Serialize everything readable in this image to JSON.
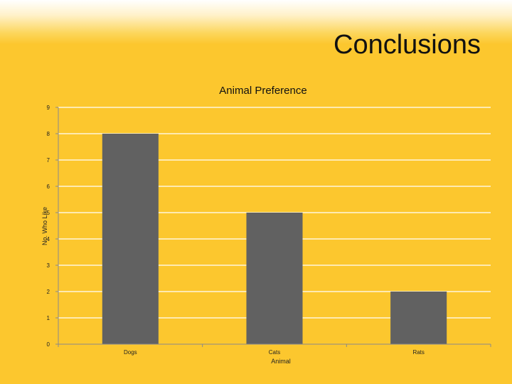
{
  "slide": {
    "title": "Conclusions"
  },
  "chart_data": {
    "type": "bar",
    "title": "Animal Preference",
    "xlabel": "Animal",
    "ylabel": "No. Who Like",
    "categories": [
      "Dogs",
      "Cats",
      "Rats"
    ],
    "values": [
      8,
      5,
      2
    ],
    "ylim": [
      0,
      9
    ],
    "yticks": [
      0,
      1,
      2,
      3,
      4,
      5,
      6,
      7,
      8,
      9
    ],
    "grid": true,
    "legend": "none",
    "bar_color": "#616161",
    "grid_color": "#ffffff"
  }
}
